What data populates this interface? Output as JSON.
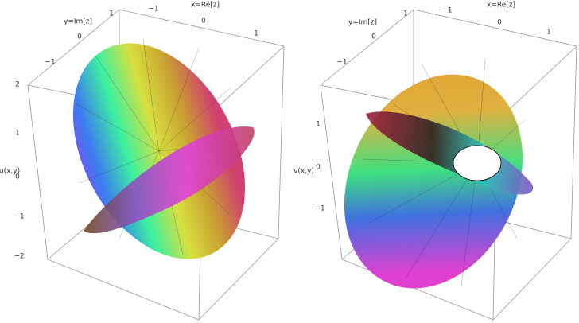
{
  "panels": [
    {
      "x_axis_label": "x=Re[z]",
      "y_axis_label": "y=Im[z]",
      "z_axis_label": "u(x,y)",
      "x_ticks": [
        "−1",
        "0",
        "1"
      ],
      "y_ticks": [
        "1",
        "0",
        "−1"
      ],
      "z_ticks": [
        "2",
        "1",
        "0",
        "−1",
        "−2"
      ]
    },
    {
      "x_axis_label": "x=Re[z]",
      "y_axis_label": "y=Im[z]",
      "z_axis_label": "v(x,y)",
      "x_ticks": [
        "−1",
        "0",
        "1"
      ],
      "y_ticks": [
        "1",
        "0",
        "−1"
      ],
      "z_ticks": [
        "1",
        "0",
        "−1"
      ]
    }
  ]
}
